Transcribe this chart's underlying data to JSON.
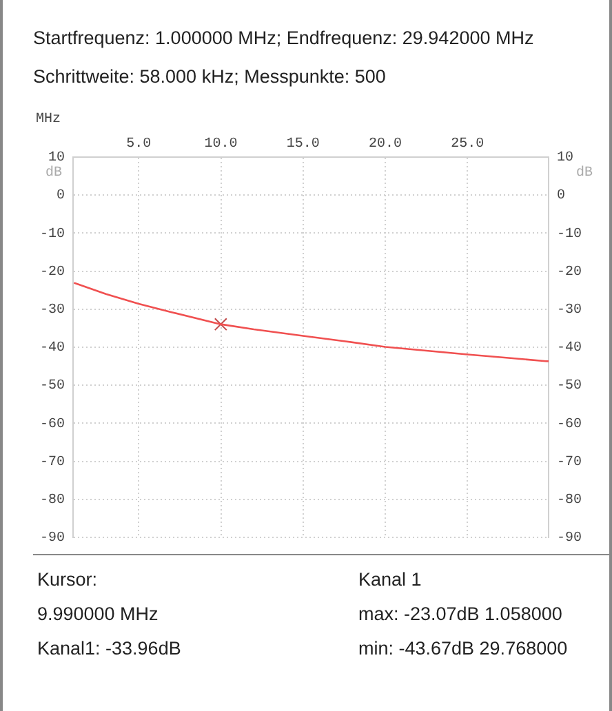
{
  "chart_data": {
    "type": "line",
    "title": "Startfrequenz: 1.000000 MHz; Endfrequenz: 29.942000 MHz",
    "subtitle": "Schrittweite: 58.000 kHz; Messpunkte:  500",
    "xlabel": "MHz",
    "ylabel": "dB",
    "xlim": [
      1,
      29.942
    ],
    "xticks": [
      {
        "value": 5,
        "label": "5.0"
      },
      {
        "value": 10,
        "label": "10.0"
      },
      {
        "value": 15,
        "label": "15.0"
      },
      {
        "value": 20,
        "label": "20.0"
      },
      {
        "value": 25,
        "label": "25.0"
      }
    ],
    "ylim": [
      -90,
      10
    ],
    "yticks": [
      -90,
      -80,
      -70,
      -60,
      -50,
      -40,
      -30,
      -20,
      -10,
      0,
      10
    ],
    "y2lim": [
      -90,
      10
    ],
    "y2ticks": [
      -90,
      -80,
      -70,
      -60,
      -50,
      -40,
      -30,
      -20,
      -10,
      0,
      10
    ],
    "grid": true,
    "legend": false,
    "marker": "none",
    "line_style": "solid",
    "series": [
      {
        "type": "line",
        "color": "#f05050",
        "x": [
          1.058,
          3,
          5,
          7,
          9.99,
          12,
          15,
          17.5,
          20,
          22.5,
          25,
          27.5,
          29.768,
          29.942
        ],
        "values": [
          -23.07,
          -26.0,
          -28.6,
          -30.8,
          -33.96,
          -35.3,
          -37.0,
          -38.4,
          -39.9,
          -40.9,
          -41.9,
          -42.8,
          -43.67,
          -43.7
        ]
      },
      {
        "type": "scatter",
        "marker": "cross",
        "color": "#c04848",
        "x": [
          9.99
        ],
        "values": [
          -33.96
        ]
      }
    ],
    "annotations": [
      "Kursor:",
      "Kanal 1",
      "9.990000 MHz",
      "max: -23.07dB 1.058000",
      "Kanal1: -33.96dB",
      "min: -43.67dB 29.768000"
    ]
  }
}
